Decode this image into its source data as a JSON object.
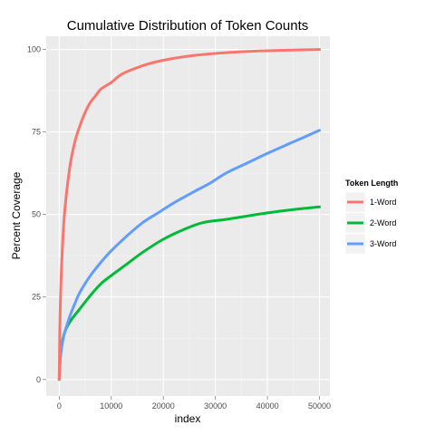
{
  "chart_data": {
    "type": "line",
    "title": "Cumulative Distribution of Token Counts",
    "xlabel": "index",
    "ylabel": "Percent Coverage",
    "xlim": [
      -2500,
      52000
    ],
    "ylim": [
      -5,
      104
    ],
    "x_ticks": [
      0,
      10000,
      20000,
      30000,
      40000,
      50000
    ],
    "y_ticks": [
      0,
      25,
      50,
      75,
      100
    ],
    "grid": true,
    "legend": {
      "title": "Token Length",
      "position": "right"
    },
    "series": [
      {
        "name": "1-Word",
        "color": "#F8766D",
        "points": [
          [
            0,
            0
          ],
          [
            100,
            14
          ],
          [
            250,
            25
          ],
          [
            500,
            36
          ],
          [
            1000,
            50
          ],
          [
            2000,
            64
          ],
          [
            3000,
            72
          ],
          [
            4000,
            77
          ],
          [
            5000,
            81
          ],
          [
            6000,
            84
          ],
          [
            7000,
            86
          ],
          [
            8000,
            88
          ],
          [
            10000,
            90
          ],
          [
            12000,
            92.5
          ],
          [
            15000,
            94.5
          ],
          [
            18000,
            96
          ],
          [
            22000,
            97.3
          ],
          [
            26000,
            98.2
          ],
          [
            30000,
            98.8
          ],
          [
            35000,
            99.3
          ],
          [
            40000,
            99.6
          ],
          [
            45000,
            99.8
          ],
          [
            50000,
            100
          ]
        ]
      },
      {
        "name": "2-Word",
        "color": "#00BA38",
        "points": [
          [
            0,
            0
          ],
          [
            200,
            7
          ],
          [
            500,
            11
          ],
          [
            1000,
            14
          ],
          [
            1500,
            16
          ],
          [
            2500,
            18.5
          ],
          [
            4000,
            21.5
          ],
          [
            6000,
            25.5
          ],
          [
            8000,
            29
          ],
          [
            10000,
            31.5
          ],
          [
            13000,
            35
          ],
          [
            16000,
            38.5
          ],
          [
            20000,
            42.5
          ],
          [
            24000,
            45.5
          ],
          [
            27500,
            47.5
          ],
          [
            32000,
            48.5
          ],
          [
            36000,
            49.5
          ],
          [
            40000,
            50.5
          ],
          [
            45000,
            51.5
          ],
          [
            50000,
            52.3
          ]
        ]
      },
      {
        "name": "3-Word",
        "color": "#619CFF",
        "points": [
          [
            0,
            0
          ],
          [
            200,
            6
          ],
          [
            500,
            10
          ],
          [
            1000,
            14
          ],
          [
            2000,
            19
          ],
          [
            3000,
            23
          ],
          [
            4000,
            26.5
          ],
          [
            6000,
            31.5
          ],
          [
            8000,
            35.5
          ],
          [
            10000,
            39
          ],
          [
            13000,
            43.5
          ],
          [
            16000,
            47.5
          ],
          [
            19000,
            50.5
          ],
          [
            22000,
            53.5
          ],
          [
            26000,
            57
          ],
          [
            29000,
            59.5
          ],
          [
            32000,
            62.5
          ],
          [
            36000,
            65.5
          ],
          [
            40000,
            68.5
          ],
          [
            45000,
            72
          ],
          [
            50000,
            75.5
          ]
        ]
      }
    ]
  }
}
